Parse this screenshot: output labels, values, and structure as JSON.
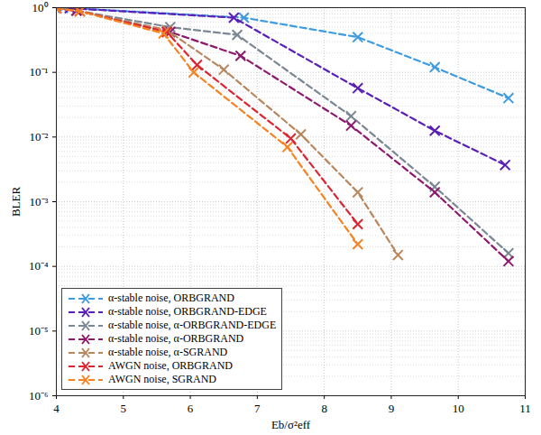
{
  "chart_data": {
    "type": "line",
    "x_label": "Eb/σ²eff",
    "y_label": "BLER",
    "log": "y",
    "grid": true,
    "legend": "lower left",
    "marker": "x",
    "line_style": "dashed",
    "xlim": [
      4,
      11
    ],
    "xticks": [
      4,
      5,
      6,
      7,
      8,
      9,
      10,
      11
    ],
    "ylim": [
      1e-06,
      1
    ],
    "yticks": [
      {
        "value": 1e-06,
        "label": "10⁻⁶"
      },
      {
        "value": 1e-05,
        "label": "10⁻⁵"
      },
      {
        "value": 0.0001,
        "label": "10⁻⁴"
      },
      {
        "value": 0.001,
        "label": "10⁻³"
      },
      {
        "value": 0.01,
        "label": "10⁻²"
      },
      {
        "value": 0.1,
        "label": "10⁻¹"
      },
      {
        "value": 1,
        "label": "10⁰"
      }
    ],
    "series": [
      {
        "name": "α-stable noise, ORBGRAND",
        "color": "#3d9be0",
        "x": [
          4.1,
          6.8,
          8.5,
          9.65,
          10.75
        ],
        "values": [
          1.0,
          0.7,
          0.35,
          0.12,
          0.04
        ]
      },
      {
        "name": "α-stable noise, ORBGRAND-EDGE",
        "color": "#5a1fb8",
        "x": [
          4.2,
          6.65,
          8.5,
          9.65,
          10.7
        ],
        "values": [
          0.98,
          0.7,
          0.057,
          0.0125,
          0.0037
        ]
      },
      {
        "name": "α-stable noise, α-ORBGRAND-EDGE",
        "color": "#7b8794",
        "x": [
          4.3,
          5.7,
          6.7,
          8.4,
          9.65,
          10.75
        ],
        "values": [
          0.9,
          0.5,
          0.38,
          0.021,
          0.0017,
          0.00016
        ]
      },
      {
        "name": "α-stable noise, α-ORBGRAND",
        "color": "#8e1a6e",
        "x": [
          4.3,
          5.7,
          6.75,
          8.4,
          9.65,
          10.75
        ],
        "values": [
          0.9,
          0.42,
          0.18,
          0.015,
          0.0014,
          0.00012
        ]
      },
      {
        "name": "α-stable noise, α-SGRAND",
        "color": "#b8875e",
        "x": [
          4.0,
          4.35,
          5.65,
          6.5,
          7.65,
          8.5,
          9.1
        ],
        "values": [
          0.98,
          0.88,
          0.45,
          0.11,
          0.011,
          0.0014,
          0.00015
        ]
      },
      {
        "name": "AWGN noise, ORBGRAND",
        "color": "#dc2530",
        "x": [
          4.0,
          4.35,
          5.65,
          6.1,
          7.5,
          8.5
        ],
        "values": [
          0.98,
          0.88,
          0.42,
          0.13,
          0.0095,
          0.00045
        ]
      },
      {
        "name": "AWGN noise, SGRAND",
        "color": "#f78220",
        "x": [
          4.0,
          4.35,
          5.6,
          6.05,
          7.45,
          8.5
        ],
        "values": [
          0.98,
          0.88,
          0.4,
          0.1,
          0.007,
          0.00022
        ]
      }
    ]
  }
}
